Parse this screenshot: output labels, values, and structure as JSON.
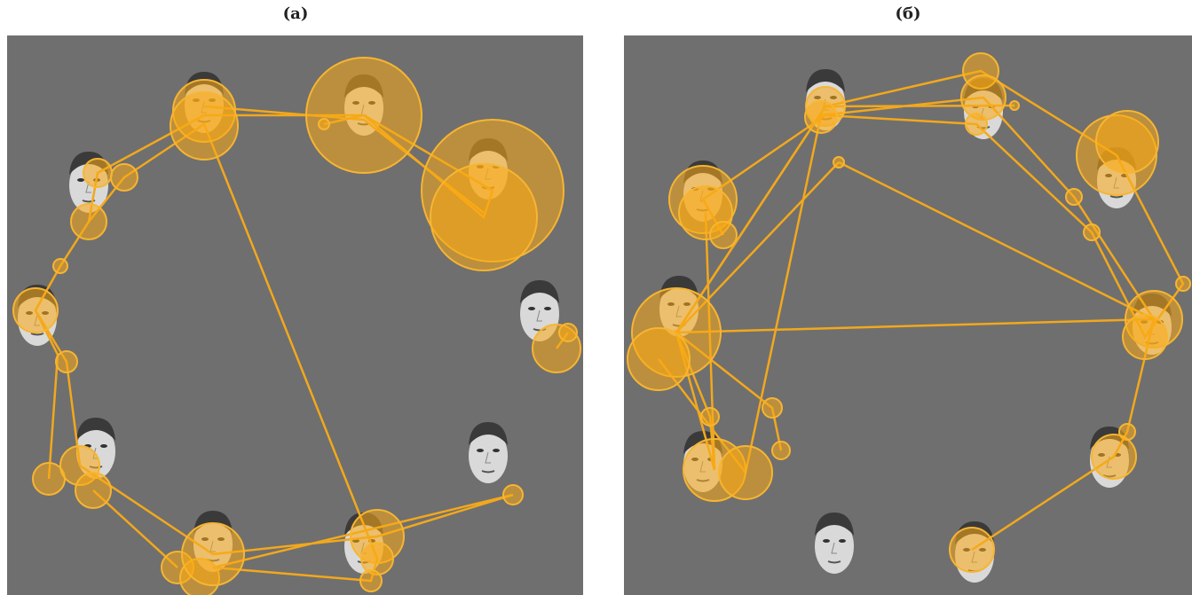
{
  "panels": [
    {
      "label": "(a)"
    },
    {
      "label": "(б)"
    }
  ]
}
